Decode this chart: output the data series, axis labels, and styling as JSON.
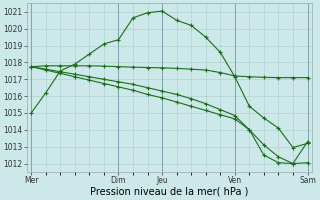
{
  "background_color": "#cce8e8",
  "plot_bg_color": "#cce8e8",
  "grid_color": "#aacccc",
  "line_color": "#1a6e1a",
  "ylabel_min": 1012,
  "ylabel_max": 1021,
  "xlabel_label": "Pression niveau de la mer( hPa )",
  "x_tick_labels": [
    "Mer",
    "Dim",
    "Jeu",
    "Ven",
    "Sam"
  ],
  "x_tick_positions": [
    0,
    6,
    9,
    14,
    19
  ],
  "series1_x": [
    0,
    1,
    2,
    3,
    4,
    5,
    6,
    7,
    8,
    9,
    10,
    11,
    12,
    13,
    14,
    15,
    16,
    17,
    18,
    19
  ],
  "series1_y": [
    1015.0,
    1016.2,
    1017.5,
    1017.9,
    1018.5,
    1019.1,
    1019.35,
    1020.65,
    1020.95,
    1021.05,
    1020.5,
    1020.2,
    1019.5,
    1018.6,
    1017.15,
    1015.4,
    1014.7,
    1014.1,
    1012.95,
    1013.2
  ],
  "series2_x": [
    0,
    1,
    2,
    3,
    4,
    5,
    6,
    7,
    8,
    9,
    10,
    11,
    12,
    13,
    14,
    15,
    16,
    17,
    18,
    19
  ],
  "series2_y": [
    1017.75,
    1017.8,
    1017.8,
    1017.8,
    1017.8,
    1017.78,
    1017.75,
    1017.72,
    1017.7,
    1017.68,
    1017.65,
    1017.6,
    1017.55,
    1017.4,
    1017.2,
    1017.15,
    1017.12,
    1017.1,
    1017.1,
    1017.1
  ],
  "series3_x": [
    0,
    1,
    2,
    3,
    4,
    5,
    6,
    7,
    8,
    9,
    10,
    11,
    12,
    13,
    14,
    15,
    16,
    17,
    18,
    19
  ],
  "series3_y": [
    1017.75,
    1017.55,
    1017.35,
    1017.15,
    1016.95,
    1016.75,
    1016.55,
    1016.35,
    1016.1,
    1015.9,
    1015.65,
    1015.4,
    1015.15,
    1014.9,
    1014.65,
    1014.0,
    1013.1,
    1012.4,
    1012.0,
    1012.05
  ],
  "series4_x": [
    0,
    1,
    2,
    3,
    4,
    5,
    6,
    7,
    8,
    9,
    10,
    11,
    12,
    13,
    14,
    15,
    16,
    17,
    18,
    19
  ],
  "series4_y": [
    1017.75,
    1017.6,
    1017.45,
    1017.3,
    1017.15,
    1017.0,
    1016.85,
    1016.7,
    1016.5,
    1016.3,
    1016.1,
    1015.85,
    1015.55,
    1015.2,
    1014.85,
    1014.0,
    1012.5,
    1012.05,
    1012.0,
    1013.3
  ],
  "tick_fontsize": 5.5,
  "xlabel_fontsize": 7.0,
  "figsize": [
    3.2,
    2.0
  ],
  "dpi": 100
}
